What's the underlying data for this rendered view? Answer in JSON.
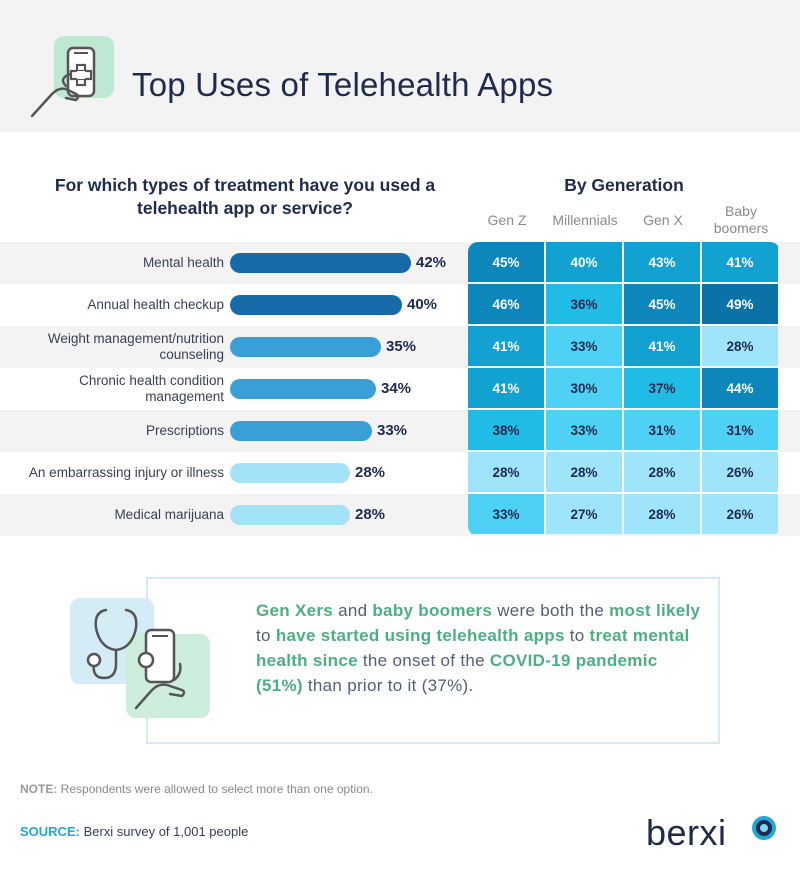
{
  "title": "Top Uses of Telehealth Apps",
  "question": "For which types of treatment have you used a telehealth app or service?",
  "generation_title": "By Generation",
  "colors": {
    "bar_dark": "#176aa8",
    "bar_mid": "#3a9fd6",
    "bar_light": "#a4e2f8",
    "heat_scale": [
      "#9ee4fb",
      "#4dd1f4",
      "#21bce6",
      "#12a2d2",
      "#0d86bc",
      "#0b72a8"
    ],
    "highlight_green": "#4dae86"
  },
  "chart_data": [
    {
      "type": "bar",
      "orientation": "horizontal",
      "categories": [
        "Mental health",
        "Annual health checkup",
        "Weight management/nutrition counseling",
        "Chronic health condition management",
        "Prescriptions",
        "An embarrassing injury or illness",
        "Medical marijuana"
      ],
      "values": [
        42,
        40,
        35,
        34,
        33,
        28,
        28
      ],
      "value_labels": [
        "42%",
        "40%",
        "35%",
        "34%",
        "33%",
        "28%",
        "28%"
      ],
      "unit": "%"
    },
    {
      "type": "heatmap",
      "title": "By Generation",
      "columns": [
        "Gen Z",
        "Millennials",
        "Gen X",
        "Baby boomers"
      ],
      "rows": [
        "Mental health",
        "Annual health checkup",
        "Weight management/nutrition counseling",
        "Chronic health condition management",
        "Prescriptions",
        "An embarrassing injury or illness",
        "Medical marijuana"
      ],
      "values": [
        [
          45,
          40,
          43,
          41
        ],
        [
          46,
          36,
          45,
          49
        ],
        [
          41,
          33,
          41,
          28
        ],
        [
          41,
          30,
          37,
          44
        ],
        [
          38,
          33,
          31,
          31
        ],
        [
          28,
          28,
          28,
          26
        ],
        [
          33,
          27,
          28,
          26
        ]
      ],
      "unit": "%"
    }
  ],
  "callout": {
    "segments": [
      {
        "text": "Gen Xers",
        "hl": true
      },
      {
        "text": " and ",
        "hl": false
      },
      {
        "text": "baby boomers",
        "hl": true
      },
      {
        "text": " were both the ",
        "hl": false
      },
      {
        "text": "most likely",
        "hl": true
      },
      {
        "text": " to ",
        "hl": false
      },
      {
        "text": "have started using telehealth apps",
        "hl": true
      },
      {
        "text": " to ",
        "hl": false
      },
      {
        "text": "treat mental health since",
        "hl": true
      },
      {
        "text": " the onset of the ",
        "hl": false
      },
      {
        "text": "COVID-19 pandemic (51%)",
        "hl": true
      },
      {
        "text": " than prior to it (37%).",
        "hl": false
      }
    ]
  },
  "note": {
    "label": "NOTE:",
    "text": " Respondents were allowed to select more than one option."
  },
  "source": {
    "label": "SOURCE:",
    "text": " Berxi survey of 1,001 people"
  },
  "brand": "berxi",
  "icons": {
    "header": "phone-medical-icon",
    "callout": "stethoscope-phone-icon",
    "brand": "berxi-logo-mark"
  }
}
